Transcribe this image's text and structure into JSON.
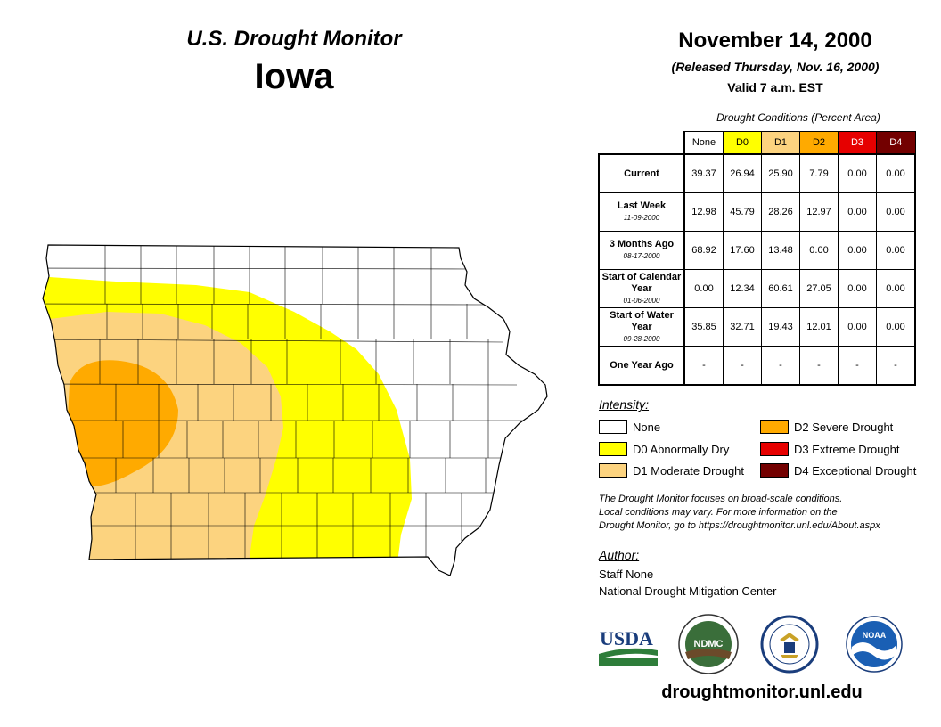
{
  "header": {
    "product_title": "U.S. Drought Monitor",
    "state_title": "Iowa",
    "map_date": "November 14, 2000",
    "released": "(Released Thursday, Nov. 16, 2000)",
    "valid": "Valid 7 a.m. EST"
  },
  "stats_table": {
    "caption": "Drought Conditions (Percent Area)",
    "columns": [
      "None",
      "D0",
      "D1",
      "D2",
      "D3",
      "D4"
    ],
    "column_colors": [
      "#ffffff",
      "#ffff00",
      "#fcd37f",
      "#ffaa00",
      "#e60000",
      "#730000"
    ],
    "rows": [
      {
        "label": "Current",
        "date": "",
        "values": [
          "39.37",
          "26.94",
          "25.90",
          "7.79",
          "0.00",
          "0.00"
        ]
      },
      {
        "label": "Last Week",
        "date": "11-09-2000",
        "values": [
          "12.98",
          "45.79",
          "28.26",
          "12.97",
          "0.00",
          "0.00"
        ]
      },
      {
        "label": "3 Months Ago",
        "date": "08-17-2000",
        "values": [
          "68.92",
          "17.60",
          "13.48",
          "0.00",
          "0.00",
          "0.00"
        ]
      },
      {
        "label": "Start of Calendar Year",
        "date": "01-06-2000",
        "values": [
          "0.00",
          "12.34",
          "60.61",
          "27.05",
          "0.00",
          "0.00"
        ]
      },
      {
        "label": "Start of Water Year",
        "date": "09-28-2000",
        "values": [
          "35.85",
          "32.71",
          "19.43",
          "12.01",
          "0.00",
          "0.00"
        ]
      },
      {
        "label": "One Year Ago",
        "date": "",
        "values": [
          "-",
          "-",
          "-",
          "-",
          "-",
          "-"
        ]
      }
    ]
  },
  "legend": {
    "heading": "Intensity:",
    "items": [
      {
        "label": "None",
        "color": "#ffffff"
      },
      {
        "label": "D0 Abnormally Dry",
        "color": "#ffff00"
      },
      {
        "label": "D1 Moderate Drought",
        "color": "#fcd37f"
      },
      {
        "label": "D2 Severe Drought",
        "color": "#ffaa00"
      },
      {
        "label": "D3 Extreme Drought",
        "color": "#e60000"
      },
      {
        "label": "D4 Exceptional Drought",
        "color": "#730000"
      }
    ]
  },
  "disclaimer": [
    "The Drought Monitor focuses on broad-scale conditions.",
    "Local conditions may vary. For more information on the",
    "Drought Monitor, go to https://droughtmonitor.unl.edu/About.aspx"
  ],
  "author": {
    "heading": "Author:",
    "name": "Staff None",
    "org": "National Drought Mitigation Center"
  },
  "logos": {
    "usda": "USDA",
    "ndmc": "NDMC",
    "noaa": "NOAA"
  },
  "website": "droughtmonitor.unl.edu"
}
